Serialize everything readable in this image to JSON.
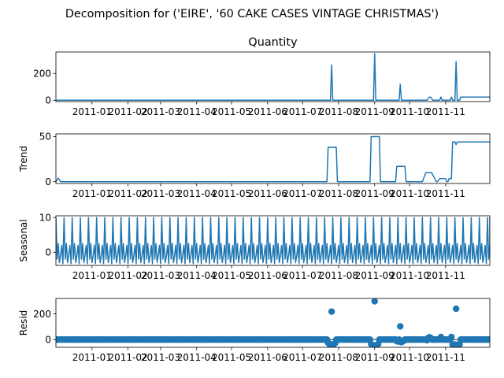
{
  "chart_data": {
    "type": "line",
    "title": "Decomposition for ('EIRE', '60 CAKE CASES VINTAGE CHRISTMAS')",
    "series_color": "#1f77b4",
    "x_tick_labels": [
      "2011-01",
      "2011-02",
      "2011-03",
      "2011-04",
      "2011-05",
      "2011-06",
      "2011-07",
      "2011-08",
      "2011-09",
      "2011-10",
      "2011-11"
    ],
    "x_ticks": [
      "2011-01-01",
      "2011-02-01",
      "2011-03-01",
      "2011-04-01",
      "2011-05-01",
      "2011-06-01",
      "2011-07-01",
      "2011-08-01",
      "2011-09-01",
      "2011-10-01",
      "2011-11-01"
    ],
    "xlim": [
      "2010-12-01",
      "2011-12-09"
    ],
    "panels": [
      {
        "key": "observed",
        "title": "Quantity",
        "ylabel": "",
        "style": "line",
        "ylim": [
          -10,
          360
        ],
        "yticks": [
          0,
          200
        ],
        "ytick_labels": [
          "0",
          "200"
        ],
        "zero_line": false,
        "baseline": 0,
        "points": [
          [
            "2011-07-25",
            0
          ],
          [
            "2011-07-26",
            264
          ],
          [
            "2011-07-27",
            0
          ],
          [
            "2011-08-31",
            0
          ],
          [
            "2011-09-01",
            348
          ],
          [
            "2011-09-02",
            0
          ],
          [
            "2011-09-22",
            0
          ],
          [
            "2011-09-23",
            120
          ],
          [
            "2011-09-24",
            0
          ],
          [
            "2011-10-16",
            0
          ],
          [
            "2011-10-18",
            24
          ],
          [
            "2011-10-19",
            24
          ],
          [
            "2011-10-21",
            0
          ],
          [
            "2011-10-27",
            0
          ],
          [
            "2011-10-28",
            24
          ],
          [
            "2011-10-29",
            0
          ],
          [
            "2011-11-05",
            0
          ],
          [
            "2011-11-06",
            24
          ],
          [
            "2011-11-07",
            0
          ],
          [
            "2011-11-09",
            0
          ],
          [
            "2011-11-10",
            288
          ],
          [
            "2011-11-11",
            0
          ],
          [
            "2011-11-13",
            0
          ],
          [
            "2011-11-14",
            24
          ],
          [
            "2011-11-15",
            24
          ]
        ]
      },
      {
        "key": "trend",
        "title": "",
        "ylabel": "Trend",
        "style": "line",
        "ylim": [
          -2,
          53
        ],
        "yticks": [
          0,
          50
        ],
        "ytick_labels": [
          "0",
          "50"
        ],
        "zero_line": false,
        "baseline": 0,
        "start": [
          [
            "2010-12-03",
            4
          ],
          [
            "2010-12-05",
            0
          ]
        ],
        "points": [
          [
            "2011-07-22",
            0
          ],
          [
            "2011-07-23",
            38
          ],
          [
            "2011-07-30",
            38
          ],
          [
            "2011-07-31",
            0
          ],
          [
            "2011-08-28",
            0
          ],
          [
            "2011-08-29",
            50
          ],
          [
            "2011-09-05",
            50
          ],
          [
            "2011-09-06",
            0
          ],
          [
            "2011-09-19",
            0
          ],
          [
            "2011-09-20",
            17
          ],
          [
            "2011-09-27",
            17
          ],
          [
            "2011-09-28",
            0
          ],
          [
            "2011-10-12",
            0
          ],
          [
            "2011-10-15",
            10
          ],
          [
            "2011-10-20",
            10
          ],
          [
            "2011-10-24",
            0
          ],
          [
            "2011-10-25",
            0
          ],
          [
            "2011-10-27",
            3.5
          ],
          [
            "2011-11-01",
            3.5
          ],
          [
            "2011-11-02",
            0
          ],
          [
            "2011-11-03",
            0
          ],
          [
            "2011-11-04",
            3.5
          ],
          [
            "2011-11-06",
            3.5
          ],
          [
            "2011-11-07",
            44
          ],
          [
            "2011-11-09",
            44
          ],
          [
            "2011-11-10",
            41
          ],
          [
            "2011-11-11",
            44
          ]
        ]
      },
      {
        "key": "seasonal",
        "title": "",
        "ylabel": "Seasonal",
        "style": "seasonal",
        "ylim": [
          -3.8,
          10.5
        ],
        "yticks": [
          0,
          10
        ],
        "ytick_labels": [
          "0",
          "10"
        ],
        "zero_line": false,
        "pattern": [
          10,
          -2,
          2.5,
          -3,
          -1,
          2,
          -3.3
        ],
        "end_value": 10
      },
      {
        "key": "resid",
        "title": "",
        "ylabel": "Resid",
        "style": "scatter",
        "ylim": [
          -60,
          320
        ],
        "yticks": [
          0,
          200
        ],
        "ytick_labels": [
          "0",
          "200"
        ],
        "zero_line": true,
        "default_value": 0,
        "points": [
          [
            "2011-07-23",
            -25
          ],
          [
            "2011-07-24",
            -35
          ],
          [
            "2011-07-25",
            -38
          ],
          [
            "2011-07-26",
            218
          ],
          [
            "2011-07-27",
            -38
          ],
          [
            "2011-07-28",
            -35
          ],
          [
            "2011-07-29",
            -28
          ],
          [
            "2011-08-29",
            -35
          ],
          [
            "2011-08-30",
            -42
          ],
          [
            "2011-08-31",
            -45
          ],
          [
            "2011-09-01",
            298
          ],
          [
            "2011-09-02",
            -45
          ],
          [
            "2011-09-03",
            -42
          ],
          [
            "2011-09-04",
            -35
          ],
          [
            "2011-09-20",
            -12
          ],
          [
            "2011-09-21",
            -15
          ],
          [
            "2011-09-23",
            103
          ],
          [
            "2011-09-24",
            -20
          ],
          [
            "2011-09-25",
            -15
          ],
          [
            "2011-09-26",
            -10
          ],
          [
            "2011-10-16",
            -5
          ],
          [
            "2011-10-17",
            12
          ],
          [
            "2011-10-18",
            18
          ],
          [
            "2011-10-19",
            14
          ],
          [
            "2011-10-28",
            20
          ],
          [
            "2011-11-06",
            20
          ],
          [
            "2011-11-07",
            -38
          ],
          [
            "2011-11-08",
            -40
          ],
          [
            "2011-11-09",
            -38
          ],
          [
            "2011-11-10",
            240
          ],
          [
            "2011-11-11",
            -42
          ],
          [
            "2011-11-12",
            -40
          ],
          [
            "2011-11-13",
            -38
          ]
        ]
      }
    ]
  }
}
